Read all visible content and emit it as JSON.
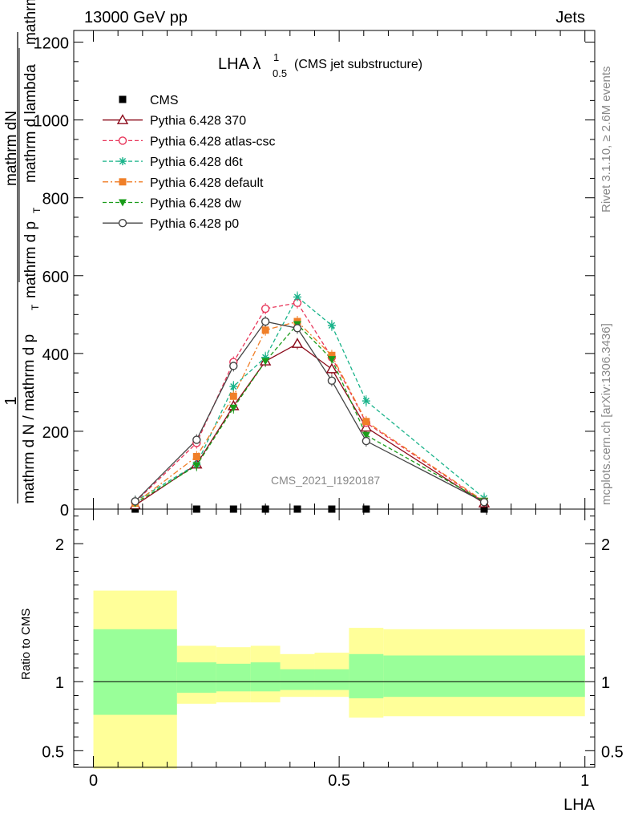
{
  "header": {
    "left": "13000 GeV pp",
    "right": "Jets"
  },
  "side_text": {
    "rivet": "Rivet 3.1.10, ≥ 2.6M events",
    "mcplots": "mcplots.cern.ch [arXiv:1306.3436]"
  },
  "chart_data": [
    {
      "type": "line",
      "panel": "main",
      "title_main": "LHA λ",
      "title_sup": "1",
      "title_sub": "0.5",
      "title_rest": "(CMS jet substructure)",
      "ylabel_parts": [
        "1",
        "mathrm d N / mathrm d p",
        "T",
        "mathrm dN",
        "mathrm d p",
        "T",
        "mathrm d lambda",
        "mathrm d"
      ],
      "watermark": "CMS_2021_I1920187",
      "xlim": [
        -0.04,
        1.02
      ],
      "ylim": [
        0,
        1230
      ],
      "yticks": [
        0,
        200,
        400,
        600,
        800,
        1000,
        1200
      ],
      "ytick_labels": [
        "0",
        "200",
        "400",
        "600",
        "800",
        "1000",
        "1200"
      ],
      "x": [
        0.085,
        0.21,
        0.285,
        0.35,
        0.415,
        0.485,
        0.555,
        0.795
      ],
      "series": [
        {
          "name": "CMS",
          "color": "#000000",
          "marker": "square",
          "dash": "none",
          "values": [
            0,
            0,
            0,
            0,
            0,
            0,
            0,
            0
          ]
        },
        {
          "name": "Pythia 6.428 370",
          "color": "#8b0a1a",
          "marker": "triangle-open",
          "dash": "solid",
          "values": [
            10,
            115,
            265,
            380,
            425,
            360,
            210,
            15
          ]
        },
        {
          "name": "Pythia 6.428 atlas-csc",
          "color": "#e8365a",
          "marker": "circle-open",
          "dash": "dashed",
          "values": [
            18,
            170,
            378,
            515,
            530,
            390,
            222,
            18
          ]
        },
        {
          "name": "Pythia 6.428 d6t",
          "color": "#19b38a",
          "marker": "star",
          "dash": "dashed",
          "values": [
            20,
            115,
            315,
            390,
            545,
            472,
            278,
            28
          ]
        },
        {
          "name": "Pythia 6.428 default",
          "color": "#f07f28",
          "marker": "square",
          "dash": "dashdot",
          "values": [
            15,
            135,
            290,
            460,
            482,
            395,
            225,
            20
          ]
        },
        {
          "name": "Pythia 6.428 dw",
          "color": "#1a9c1a",
          "marker": "triangle-down",
          "dash": "dashed",
          "values": [
            15,
            112,
            260,
            380,
            475,
            385,
            190,
            20
          ]
        },
        {
          "name": "Pythia 6.428 p0",
          "color": "#444444",
          "marker": "circle-open",
          "dash": "solid",
          "values": [
            20,
            178,
            368,
            482,
            465,
            330,
            175,
            18
          ]
        }
      ]
    },
    {
      "type": "area",
      "panel": "ratio",
      "ylabel": "Ratio to CMS",
      "xlabel": "LHA",
      "xlim": [
        -0.04,
        1.02
      ],
      "ylim": [
        0.38,
        2.25
      ],
      "yticks": [
        0.5,
        1,
        2
      ],
      "ytick_labels": [
        "0.5",
        "1",
        "2"
      ],
      "xticks": [
        0,
        0.5,
        1
      ],
      "xtick_labels": [
        "0",
        "0.5",
        "1"
      ],
      "reference": 1,
      "bins": [
        {
          "x0": 0.0,
          "x1": 0.17,
          "yellow": [
            0.37,
            1.66
          ],
          "green": [
            0.76,
            1.38
          ]
        },
        {
          "x0": 0.17,
          "x1": 0.25,
          "yellow": [
            0.84,
            1.26
          ],
          "green": [
            0.92,
            1.14
          ]
        },
        {
          "x0": 0.25,
          "x1": 0.32,
          "yellow": [
            0.85,
            1.25
          ],
          "green": [
            0.93,
            1.13
          ]
        },
        {
          "x0": 0.32,
          "x1": 0.38,
          "yellow": [
            0.85,
            1.26
          ],
          "green": [
            0.93,
            1.14
          ]
        },
        {
          "x0": 0.38,
          "x1": 0.45,
          "yellow": [
            0.89,
            1.2
          ],
          "green": [
            0.94,
            1.09
          ]
        },
        {
          "x0": 0.45,
          "x1": 0.52,
          "yellow": [
            0.89,
            1.21
          ],
          "green": [
            0.94,
            1.09
          ]
        },
        {
          "x0": 0.52,
          "x1": 0.59,
          "yellow": [
            0.74,
            1.39
          ],
          "green": [
            0.88,
            1.2
          ]
        },
        {
          "x0": 0.59,
          "x1": 1.0,
          "yellow": [
            0.75,
            1.38
          ],
          "green": [
            0.89,
            1.19
          ]
        }
      ]
    }
  ]
}
